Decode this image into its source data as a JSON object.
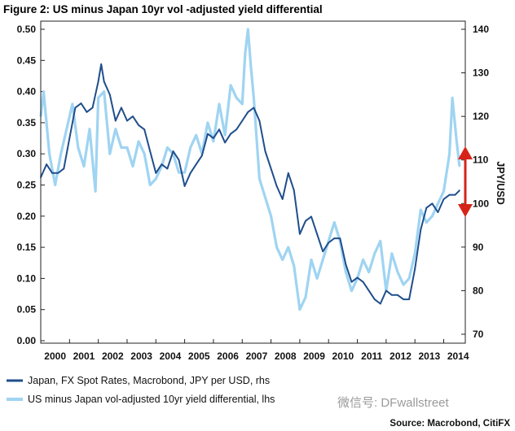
{
  "chart_data": {
    "type": "line",
    "title": "Figure 2: US minus Japan 10yr vol  -adjusted yield differential",
    "xlabel": "",
    "ylabel_left": "",
    "ylabel_right": "JPY/USD",
    "x_range": [
      2000,
      2014.75
    ],
    "x_ticks": [
      "2000",
      "2001",
      "2002",
      "2003",
      "2004",
      "2005",
      "2006",
      "2007",
      "2008",
      "2009",
      "2010",
      "2011",
      "2012",
      "2013",
      "2014"
    ],
    "ylim_left": [
      0.0,
      0.5
    ],
    "yticks_left": [
      "0.00",
      "0.05",
      "0.10",
      "0.15",
      "0.20",
      "0.25",
      "0.30",
      "0.35",
      "0.40",
      "0.45",
      "0.50"
    ],
    "ylim_right": [
      65,
      140
    ],
    "yticks_right": [
      "70",
      "80",
      "90",
      "100",
      "110",
      "120",
      "130",
      "140"
    ],
    "grid": false,
    "legend_position": "bottom-left",
    "series": [
      {
        "name": "Japan, FX Spot Rates, Macrobond, JPY per USD, rhs",
        "axis": "right",
        "color": "#1f4e8c",
        "x": [
          2000.0,
          2000.2,
          2000.4,
          2000.6,
          2000.8,
          2001.0,
          2001.2,
          2001.4,
          2001.6,
          2001.8,
          2002.0,
          2002.1,
          2002.2,
          2002.4,
          2002.6,
          2002.8,
          2003.0,
          2003.2,
          2003.4,
          2003.6,
          2003.8,
          2004.0,
          2004.2,
          2004.4,
          2004.6,
          2004.8,
          2005.0,
          2005.2,
          2005.4,
          2005.6,
          2005.8,
          2006.0,
          2006.2,
          2006.4,
          2006.6,
          2006.8,
          2007.0,
          2007.2,
          2007.4,
          2007.6,
          2007.8,
          2008.0,
          2008.2,
          2008.4,
          2008.6,
          2008.8,
          2009.0,
          2009.2,
          2009.4,
          2009.6,
          2009.8,
          2010.0,
          2010.2,
          2010.4,
          2010.6,
          2010.8,
          2011.0,
          2011.2,
          2011.4,
          2011.6,
          2011.8,
          2012.0,
          2012.2,
          2012.4,
          2012.6,
          2012.8,
          2013.0,
          2013.2,
          2013.4,
          2013.6,
          2013.8,
          2014.0,
          2014.2,
          2014.4,
          2014.55
        ],
        "values": [
          106,
          109,
          107,
          107,
          108,
          115,
          122,
          123,
          121,
          122,
          128,
          132,
          128,
          125,
          119,
          122,
          119,
          120,
          118,
          117,
          112,
          107,
          109,
          108,
          112,
          110,
          104,
          107,
          109,
          111,
          116,
          115,
          117,
          114,
          116,
          117,
          119,
          121,
          122,
          119,
          112,
          108,
          104,
          101,
          107,
          103,
          93,
          96,
          97,
          93,
          89,
          91,
          92,
          92,
          86,
          82,
          83,
          82,
          80,
          78,
          77,
          80,
          79,
          79,
          78,
          78,
          85,
          94,
          99,
          100,
          98,
          101,
          102,
          102,
          103
        ]
      },
      {
        "name": "US minus Japan vol-adjusted 10yr yield differential, lhs",
        "axis": "left",
        "color": "#9fd4f2",
        "x": [
          2000.0,
          2000.1,
          2000.3,
          2000.5,
          2000.7,
          2000.9,
          2001.1,
          2001.3,
          2001.5,
          2001.7,
          2001.9,
          2002.0,
          2002.2,
          2002.4,
          2002.6,
          2002.8,
          2003.0,
          2003.2,
          2003.4,
          2003.6,
          2003.8,
          2004.0,
          2004.2,
          2004.4,
          2004.6,
          2004.8,
          2005.0,
          2005.2,
          2005.4,
          2005.6,
          2005.8,
          2006.0,
          2006.2,
          2006.4,
          2006.6,
          2006.8,
          2007.0,
          2007.1,
          2007.2,
          2007.3,
          2007.4,
          2007.6,
          2007.8,
          2008.0,
          2008.2,
          2008.4,
          2008.6,
          2008.8,
          2009.0,
          2009.2,
          2009.4,
          2009.6,
          2009.8,
          2010.0,
          2010.2,
          2010.4,
          2010.6,
          2010.8,
          2011.0,
          2011.2,
          2011.4,
          2011.6,
          2011.8,
          2012.0,
          2012.2,
          2012.4,
          2012.6,
          2012.8,
          2013.0,
          2013.2,
          2013.4,
          2013.6,
          2013.8,
          2014.0,
          2014.2,
          2014.3,
          2014.45,
          2014.55
        ],
        "values": [
          0.36,
          0.4,
          0.3,
          0.25,
          0.3,
          0.34,
          0.38,
          0.31,
          0.28,
          0.34,
          0.24,
          0.39,
          0.4,
          0.3,
          0.34,
          0.31,
          0.31,
          0.28,
          0.32,
          0.3,
          0.25,
          0.26,
          0.28,
          0.31,
          0.3,
          0.27,
          0.27,
          0.31,
          0.33,
          0.3,
          0.35,
          0.32,
          0.38,
          0.33,
          0.41,
          0.39,
          0.38,
          0.46,
          0.5,
          0.44,
          0.39,
          0.26,
          0.23,
          0.2,
          0.15,
          0.13,
          0.15,
          0.12,
          0.05,
          0.07,
          0.13,
          0.1,
          0.13,
          0.16,
          0.19,
          0.16,
          0.11,
          0.08,
          0.1,
          0.13,
          0.11,
          0.14,
          0.16,
          0.08,
          0.14,
          0.11,
          0.09,
          0.1,
          0.14,
          0.21,
          0.19,
          0.2,
          0.22,
          0.24,
          0.3,
          0.39,
          0.32,
          0.28
        ]
      }
    ],
    "annotations": [
      {
        "type": "double-arrow",
        "color": "#d62418",
        "axis": "right",
        "from": 112,
        "to": 98
      }
    ],
    "source": "Source: Macrobond, CitiFX"
  },
  "watermark": "微信号: DFwallstreet",
  "colors": {
    "series1": "#1f4e8c",
    "series2": "#9fd4f2",
    "arrow": "#d62418"
  }
}
